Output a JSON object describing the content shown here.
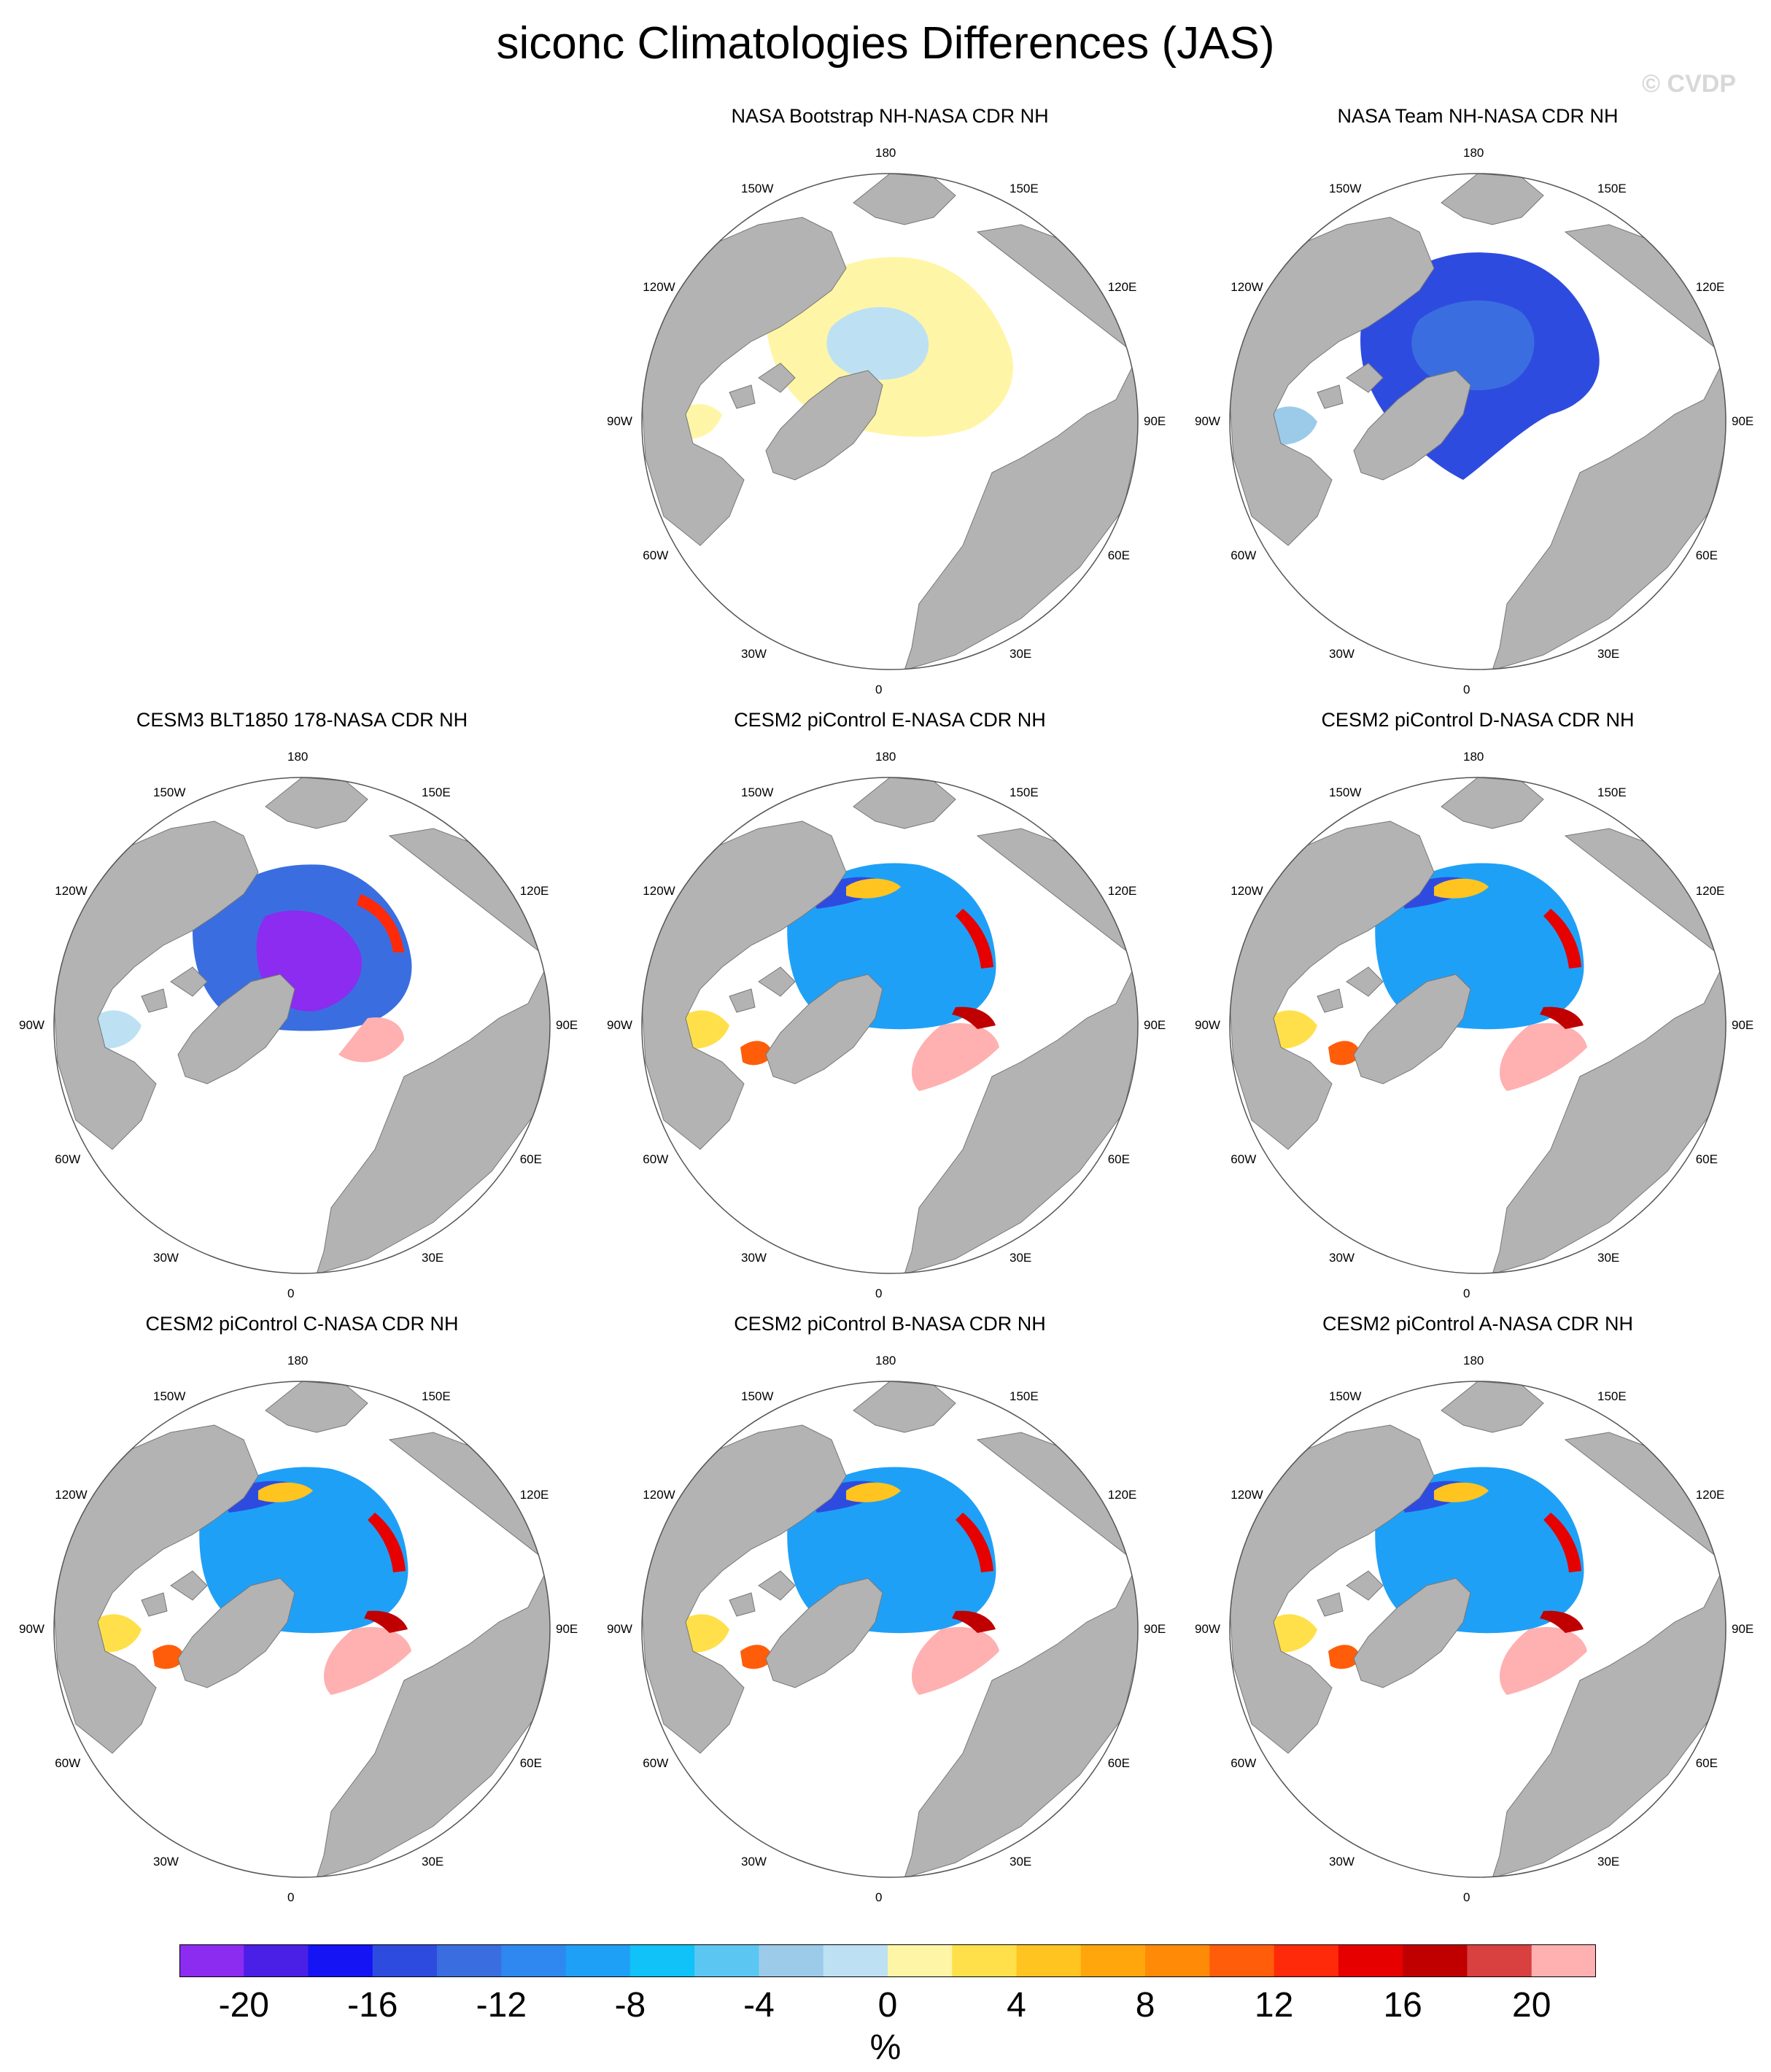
{
  "title": "siconc Climatologies Differences (JAS)",
  "watermark": "© CVDP",
  "panels": [
    {
      "title": "NASA Bootstrap NH-NASA CDR NH",
      "pattern": "bootstrap"
    },
    {
      "title": "NASA Team NH-NASA CDR NH",
      "pattern": "team"
    },
    {
      "title": "CESM3 BLT1850 178-NASA CDR NH",
      "pattern": "cesm3"
    },
    {
      "title": "CESM2 piControl E-NASA CDR NH",
      "pattern": "cesm2"
    },
    {
      "title": "CESM2 piControl D-NASA CDR NH",
      "pattern": "cesm2"
    },
    {
      "title": "CESM2 piControl C-NASA CDR NH",
      "pattern": "cesm2"
    },
    {
      "title": "CESM2 piControl B-NASA CDR NH",
      "pattern": "cesm2"
    },
    {
      "title": "CESM2 piControl A-NASA CDR NH",
      "pattern": "cesm2"
    }
  ],
  "lon_labels": [
    "180",
    "150E",
    "120E",
    "90E",
    "60E",
    "30E",
    "0",
    "30W",
    "60W",
    "90W",
    "120W",
    "150W"
  ],
  "colorbar": {
    "colors": [
      "#8b2cf0",
      "#4a1fe6",
      "#1414f5",
      "#2e4be0",
      "#3a6ee0",
      "#2f87f0",
      "#1fa0f7",
      "#10c2f7",
      "#5cc6f2",
      "#9ccbea",
      "#bde1f3",
      "#fff5a6",
      "#ffe04a",
      "#ffc41f",
      "#ffa60d",
      "#ff8a08",
      "#ff5d0a",
      "#ff2a0a",
      "#e60000",
      "#c00000",
      "#d94040",
      "#ffb0b0"
    ],
    "tick_labels": [
      "-20",
      "-16",
      "-12",
      "-8",
      "-4",
      "0",
      "4",
      "8",
      "12",
      "16",
      "20"
    ],
    "units": "%"
  }
}
